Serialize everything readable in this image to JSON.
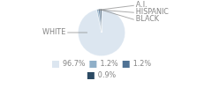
{
  "chart_data": {
    "type": "pie",
    "categories": [
      "WHITE",
      "A.I.",
      "HISPANIC",
      "BLACK"
    ],
    "values": [
      96.7,
      1.2,
      1.2,
      0.9
    ],
    "value_labels": [
      "96.7%",
      "1.2%",
      "1.2%",
      "0.9%"
    ],
    "colors": [
      "#dce6f0",
      "#8fafc8",
      "#4f7294",
      "#2c4a63"
    ],
    "legend": "bottom"
  }
}
